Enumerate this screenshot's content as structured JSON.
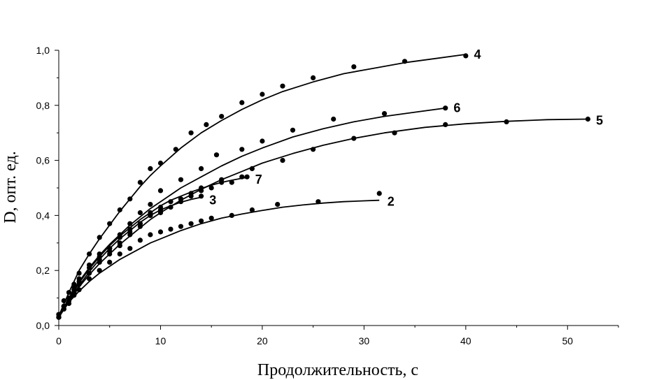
{
  "chart_data": {
    "type": "scatter",
    "title": "",
    "xlabel": "Продолжительность, с",
    "ylabel": "D, опт. ед.",
    "xlim": [
      0,
      55
    ],
    "ylim": [
      0,
      1.0
    ],
    "x_ticks": [
      0,
      10,
      20,
      30,
      40,
      50
    ],
    "x_tick_labels": [
      "0",
      "10",
      "20",
      "30",
      "40",
      "50"
    ],
    "y_ticks": [
      0,
      0.2,
      0.4,
      0.6,
      0.8,
      1.0
    ],
    "y_tick_labels": [
      "0,0",
      "0,2",
      "0,4",
      "0,6",
      "0,8",
      "1,0"
    ],
    "grid": false,
    "legend": "none",
    "series": [
      {
        "label": "4",
        "points": [
          [
            0,
            0.04
          ],
          [
            0.5,
            0.09
          ],
          [
            1,
            0.12
          ],
          [
            1.5,
            0.15
          ],
          [
            2,
            0.19
          ],
          [
            3,
            0.26
          ],
          [
            4,
            0.32
          ],
          [
            5,
            0.37
          ],
          [
            6,
            0.42
          ],
          [
            7,
            0.46
          ],
          [
            8,
            0.52
          ],
          [
            9,
            0.57
          ],
          [
            10,
            0.59
          ],
          [
            11.5,
            0.64
          ],
          [
            13,
            0.7
          ],
          [
            14.5,
            0.73
          ],
          [
            16,
            0.76
          ],
          [
            18,
            0.81
          ],
          [
            20,
            0.84
          ],
          [
            22,
            0.87
          ],
          [
            25,
            0.9
          ],
          [
            29,
            0.94
          ],
          [
            34,
            0.96
          ],
          [
            40,
            0.98
          ]
        ],
        "curve": [
          [
            0,
            0.035
          ],
          [
            1,
            0.12
          ],
          [
            2,
            0.2
          ],
          [
            3,
            0.26
          ],
          [
            4,
            0.315
          ],
          [
            5,
            0.365
          ],
          [
            6,
            0.415
          ],
          [
            7,
            0.46
          ],
          [
            8,
            0.505
          ],
          [
            9,
            0.545
          ],
          [
            10,
            0.58
          ],
          [
            12,
            0.645
          ],
          [
            14,
            0.7
          ],
          [
            16,
            0.745
          ],
          [
            18,
            0.785
          ],
          [
            20,
            0.82
          ],
          [
            22,
            0.85
          ],
          [
            25,
            0.885
          ],
          [
            28,
            0.915
          ],
          [
            31,
            0.935
          ],
          [
            34,
            0.955
          ],
          [
            37,
            0.97
          ],
          [
            40,
            0.985
          ]
        ]
      },
      {
        "label": "6",
        "points": [
          [
            0,
            0.03
          ],
          [
            0.5,
            0.07
          ],
          [
            1,
            0.1
          ],
          [
            1.5,
            0.13
          ],
          [
            2,
            0.16
          ],
          [
            3,
            0.21
          ],
          [
            4,
            0.26
          ],
          [
            5,
            0.28
          ],
          [
            6,
            0.33
          ],
          [
            7,
            0.37
          ],
          [
            8,
            0.41
          ],
          [
            9,
            0.44
          ],
          [
            10,
            0.49
          ],
          [
            12,
            0.53
          ],
          [
            14,
            0.57
          ],
          [
            15.5,
            0.62
          ],
          [
            18,
            0.64
          ],
          [
            20,
            0.67
          ],
          [
            23,
            0.71
          ],
          [
            27,
            0.75
          ],
          [
            32,
            0.77
          ],
          [
            38,
            0.79
          ]
        ],
        "curve": [
          [
            0,
            0.03
          ],
          [
            1,
            0.1
          ],
          [
            2,
            0.16
          ],
          [
            3,
            0.21
          ],
          [
            4,
            0.255
          ],
          [
            5,
            0.295
          ],
          [
            6,
            0.33
          ],
          [
            7,
            0.365
          ],
          [
            8,
            0.395
          ],
          [
            9,
            0.425
          ],
          [
            10,
            0.45
          ],
          [
            12,
            0.5
          ],
          [
            14,
            0.54
          ],
          [
            16,
            0.58
          ],
          [
            18,
            0.615
          ],
          [
            20,
            0.645
          ],
          [
            23,
            0.685
          ],
          [
            26,
            0.715
          ],
          [
            29,
            0.74
          ],
          [
            32,
            0.76
          ],
          [
            35,
            0.775
          ],
          [
            38,
            0.79
          ]
        ]
      },
      {
        "label": "5",
        "points": [
          [
            0,
            0.03
          ],
          [
            0.5,
            0.06
          ],
          [
            1,
            0.09
          ],
          [
            1.5,
            0.12
          ],
          [
            2,
            0.15
          ],
          [
            3,
            0.19
          ],
          [
            4,
            0.23
          ],
          [
            5,
            0.26
          ],
          [
            6,
            0.29
          ],
          [
            7,
            0.33
          ],
          [
            8,
            0.36
          ],
          [
            9,
            0.4
          ],
          [
            10,
            0.42
          ],
          [
            12,
            0.46
          ],
          [
            14,
            0.5
          ],
          [
            16,
            0.53
          ],
          [
            19,
            0.57
          ],
          [
            22,
            0.6
          ],
          [
            25,
            0.64
          ],
          [
            29,
            0.68
          ],
          [
            33,
            0.7
          ],
          [
            38,
            0.73
          ],
          [
            44,
            0.74
          ],
          [
            52,
            0.75
          ]
        ],
        "curve": [
          [
            0,
            0.03
          ],
          [
            1,
            0.085
          ],
          [
            2,
            0.14
          ],
          [
            3,
            0.185
          ],
          [
            4,
            0.225
          ],
          [
            5,
            0.26
          ],
          [
            6,
            0.295
          ],
          [
            7,
            0.325
          ],
          [
            8,
            0.355
          ],
          [
            9,
            0.385
          ],
          [
            10,
            0.41
          ],
          [
            12,
            0.455
          ],
          [
            14,
            0.495
          ],
          [
            16,
            0.53
          ],
          [
            18,
            0.56
          ],
          [
            20,
            0.59
          ],
          [
            23,
            0.625
          ],
          [
            26,
            0.655
          ],
          [
            29,
            0.68
          ],
          [
            32,
            0.7
          ],
          [
            36,
            0.72
          ],
          [
            40,
            0.733
          ],
          [
            44,
            0.742
          ],
          [
            48,
            0.748
          ],
          [
            52,
            0.75
          ]
        ]
      },
      {
        "label": "7",
        "points": [
          [
            0,
            0.03
          ],
          [
            0.5,
            0.07
          ],
          [
            1,
            0.1
          ],
          [
            1.5,
            0.14
          ],
          [
            2,
            0.17
          ],
          [
            3,
            0.22
          ],
          [
            4,
            0.25
          ],
          [
            5,
            0.28
          ],
          [
            6,
            0.32
          ],
          [
            7,
            0.35
          ],
          [
            8,
            0.37
          ],
          [
            9,
            0.41
          ],
          [
            10,
            0.43
          ],
          [
            11,
            0.45
          ],
          [
            12,
            0.46
          ],
          [
            13,
            0.48
          ],
          [
            14,
            0.49
          ],
          [
            15,
            0.5
          ],
          [
            16,
            0.52
          ],
          [
            17,
            0.52
          ],
          [
            18,
            0.54
          ],
          [
            18.5,
            0.54
          ]
        ],
        "curve": [
          [
            0,
            0.03
          ],
          [
            1,
            0.095
          ],
          [
            2,
            0.155
          ],
          [
            3,
            0.205
          ],
          [
            4,
            0.25
          ],
          [
            5,
            0.29
          ],
          [
            6,
            0.325
          ],
          [
            7,
            0.355
          ],
          [
            8,
            0.385
          ],
          [
            9,
            0.41
          ],
          [
            10,
            0.435
          ],
          [
            11,
            0.455
          ],
          [
            12,
            0.47
          ],
          [
            13,
            0.485
          ],
          [
            14,
            0.498
          ],
          [
            15,
            0.51
          ],
          [
            16,
            0.52
          ],
          [
            17,
            0.528
          ],
          [
            18,
            0.535
          ],
          [
            18.5,
            0.538
          ]
        ]
      },
      {
        "label": "3",
        "points": [
          [
            0,
            0.03
          ],
          [
            0.5,
            0.06
          ],
          [
            1,
            0.09
          ],
          [
            1.5,
            0.12
          ],
          [
            2,
            0.15
          ],
          [
            3,
            0.19
          ],
          [
            4,
            0.24
          ],
          [
            5,
            0.27
          ],
          [
            6,
            0.3
          ],
          [
            7,
            0.34
          ],
          [
            8,
            0.37
          ],
          [
            9,
            0.4
          ],
          [
            10,
            0.41
          ],
          [
            11,
            0.43
          ],
          [
            12,
            0.45
          ],
          [
            13,
            0.47
          ],
          [
            14,
            0.47
          ]
        ],
        "curve": [
          [
            0,
            0.03
          ],
          [
            1,
            0.09
          ],
          [
            2,
            0.145
          ],
          [
            3,
            0.195
          ],
          [
            4,
            0.24
          ],
          [
            5,
            0.28
          ],
          [
            6,
            0.315
          ],
          [
            7,
            0.345
          ],
          [
            8,
            0.375
          ],
          [
            9,
            0.4
          ],
          [
            10,
            0.42
          ],
          [
            11,
            0.435
          ],
          [
            12,
            0.448
          ],
          [
            13,
            0.458
          ],
          [
            14,
            0.466
          ]
        ]
      },
      {
        "label": "2",
        "points": [
          [
            0,
            0.04
          ],
          [
            0.5,
            0.07
          ],
          [
            1,
            0.08
          ],
          [
            1.5,
            0.11
          ],
          [
            2,
            0.13
          ],
          [
            3,
            0.17
          ],
          [
            4,
            0.2
          ],
          [
            5,
            0.23
          ],
          [
            6,
            0.26
          ],
          [
            7,
            0.28
          ],
          [
            8,
            0.31
          ],
          [
            9,
            0.33
          ],
          [
            10,
            0.34
          ],
          [
            11,
            0.35
          ],
          [
            12,
            0.36
          ],
          [
            13,
            0.37
          ],
          [
            14,
            0.38
          ],
          [
            15,
            0.39
          ],
          [
            17,
            0.4
          ],
          [
            19,
            0.42
          ],
          [
            21.5,
            0.44
          ],
          [
            25.5,
            0.45
          ],
          [
            31.5,
            0.48
          ]
        ],
        "curve": [
          [
            0,
            0.04
          ],
          [
            1,
            0.085
          ],
          [
            2,
            0.125
          ],
          [
            3,
            0.16
          ],
          [
            4,
            0.19
          ],
          [
            5,
            0.215
          ],
          [
            6,
            0.24
          ],
          [
            7,
            0.26
          ],
          [
            8,
            0.28
          ],
          [
            9,
            0.3
          ],
          [
            10,
            0.315
          ],
          [
            12,
            0.345
          ],
          [
            14,
            0.37
          ],
          [
            16,
            0.39
          ],
          [
            18,
            0.405
          ],
          [
            20,
            0.418
          ],
          [
            22,
            0.43
          ],
          [
            24,
            0.438
          ],
          [
            26,
            0.445
          ],
          [
            28,
            0.45
          ],
          [
            30,
            0.453
          ],
          [
            31.5,
            0.455
          ]
        ]
      }
    ],
    "label_positions": [
      {
        "series": "4",
        "x": 40.8,
        "y": 0.985
      },
      {
        "series": "6",
        "x": 38.8,
        "y": 0.79
      },
      {
        "series": "5",
        "x": 52.8,
        "y": 0.745
      },
      {
        "series": "7",
        "x": 19.3,
        "y": 0.53
      },
      {
        "series": "3",
        "x": 14.8,
        "y": 0.455
      },
      {
        "series": "2",
        "x": 32.3,
        "y": 0.45
      }
    ]
  }
}
